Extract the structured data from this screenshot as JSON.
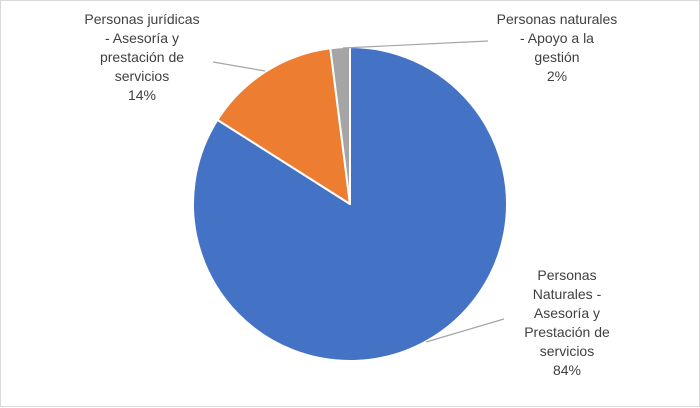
{
  "chart_data": {
    "type": "pie",
    "title": "",
    "slices": [
      {
        "label_lines": [
          "Personas",
          "Naturales -",
          "Asesoría y",
          "Prestación de",
          "servicios"
        ],
        "percent_label": "84%",
        "value": 84,
        "color": "#4472c4"
      },
      {
        "label_lines": [
          "Personas jurídicas",
          "- Asesoría y",
          "prestación de",
          "servicios"
        ],
        "percent_label": "14%",
        "value": 14,
        "color": "#ed7d31"
      },
      {
        "label_lines": [
          "Personas naturales",
          "- Apoyo a la",
          "gestión"
        ],
        "percent_label": "2%",
        "value": 2,
        "color": "#a5a5a5"
      }
    ],
    "legend": "none",
    "data_labels": "outside-with-leader-lines"
  }
}
